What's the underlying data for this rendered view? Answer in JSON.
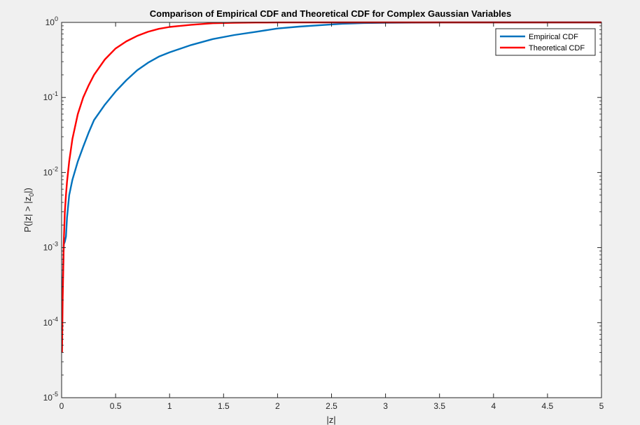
{
  "chart_data": {
    "type": "line",
    "title": "Comparison of Empirical CDF and Theoretical CDF for Complex Gaussian Variables",
    "xlabel": "|z|",
    "ylabel_parts": [
      "P(|z| > |z",
      "0",
      "|)"
    ],
    "xlim": [
      0,
      5
    ],
    "ylim": [
      1e-05,
      1
    ],
    "yscale": "log",
    "grid": false,
    "legend_location": "top-right",
    "x_ticks": [
      {
        "value": 0,
        "label": "0"
      },
      {
        "value": 0.5,
        "label": "0.5"
      },
      {
        "value": 1,
        "label": "1"
      },
      {
        "value": 1.5,
        "label": "1.5"
      },
      {
        "value": 2,
        "label": "2"
      },
      {
        "value": 2.5,
        "label": "2.5"
      },
      {
        "value": 3,
        "label": "3"
      },
      {
        "value": 3.5,
        "label": "3.5"
      },
      {
        "value": 4,
        "label": "4"
      },
      {
        "value": 4.5,
        "label": "4.5"
      },
      {
        "value": 5,
        "label": "5"
      }
    ],
    "y_ticks": [
      {
        "value": 1,
        "base": "10",
        "exp": "0"
      },
      {
        "value": 0.1,
        "base": "10",
        "exp": "-1"
      },
      {
        "value": 0.01,
        "base": "10",
        "exp": "-2"
      },
      {
        "value": 0.001,
        "base": "10",
        "exp": "-3"
      },
      {
        "value": 0.0001,
        "base": "10",
        "exp": "-4"
      },
      {
        "value": 1e-05,
        "base": "10",
        "exp": "-5"
      }
    ],
    "series": [
      {
        "name": "Empirical CDF",
        "color": "#0072bd",
        "x": [
          0.004,
          0.01,
          0.02,
          0.03,
          0.04,
          0.05,
          0.07,
          0.1,
          0.15,
          0.2,
          0.25,
          0.3,
          0.4,
          0.5,
          0.6,
          0.7,
          0.8,
          0.9,
          1.0,
          1.2,
          1.4,
          1.6,
          1.8,
          2.0,
          2.2,
          2.4,
          2.6,
          2.8,
          3.0,
          3.5,
          4.0,
          4.5,
          5.0
        ],
        "y": [
          8e-05,
          0.0003,
          0.0011,
          0.0012,
          0.0014,
          0.0025,
          0.005,
          0.008,
          0.014,
          0.022,
          0.034,
          0.05,
          0.08,
          0.12,
          0.17,
          0.23,
          0.29,
          0.35,
          0.4,
          0.5,
          0.6,
          0.68,
          0.75,
          0.83,
          0.88,
          0.92,
          0.96,
          0.98,
          0.99,
          0.998,
          1.0,
          1.0,
          1.0
        ]
      },
      {
        "name": "Theoretical CDF",
        "color": "#ff0000",
        "x": [
          0.004,
          0.01,
          0.02,
          0.03,
          0.04,
          0.05,
          0.07,
          0.1,
          0.15,
          0.2,
          0.25,
          0.3,
          0.4,
          0.5,
          0.6,
          0.7,
          0.8,
          0.9,
          1.0,
          1.2,
          1.4,
          1.6,
          1.8,
          2.0,
          2.5,
          3.0,
          3.5,
          4.0,
          4.5,
          5.0
        ],
        "y": [
          4e-05,
          0.0002,
          0.0012,
          0.003,
          0.005,
          0.0075,
          0.014,
          0.028,
          0.06,
          0.1,
          0.145,
          0.2,
          0.32,
          0.45,
          0.56,
          0.66,
          0.75,
          0.82,
          0.87,
          0.93,
          0.975,
          0.99,
          0.996,
          0.998,
          1.0,
          1.0,
          1.0,
          1.0,
          1.0,
          1.0
        ]
      }
    ]
  }
}
